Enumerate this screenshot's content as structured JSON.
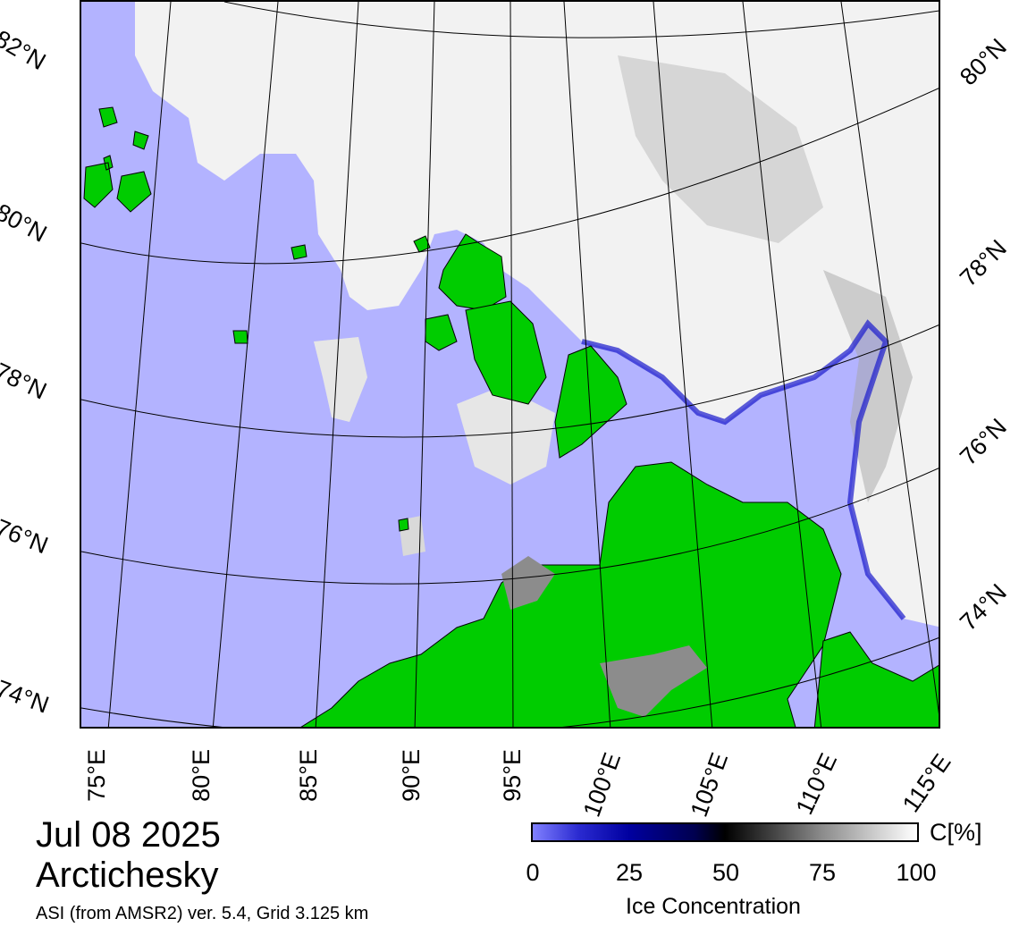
{
  "title": {
    "date": "Jul 08 2025",
    "region": "Arctichesky",
    "product": "ASI (from AMSR2) ver. 5.4,  Grid 3.125 km"
  },
  "longitude_labels": [
    "75°E",
    "80°E",
    "85°E",
    "90°E",
    "95°E",
    "100°E",
    "105°E",
    "110°E",
    "115°E"
  ],
  "latitude_labels_left": [
    "82°N",
    "80°N",
    "78°N",
    "76°N",
    "74°N"
  ],
  "latitude_labels_right": [
    "80°N",
    "78°N",
    "76°N",
    "74°N"
  ],
  "colorbar": {
    "title": "Ice Concentration",
    "unit": "C[%]",
    "ticks": [
      "0",
      "25",
      "50",
      "75",
      "100"
    ],
    "range": [
      0,
      100
    ]
  },
  "colors": {
    "open_water": "#b3b3ff",
    "land": "#00cc00",
    "land_coast_gray": "#8c8c8c",
    "ice_high": "#ffffff",
    "ice_low": "#0000a0"
  }
}
